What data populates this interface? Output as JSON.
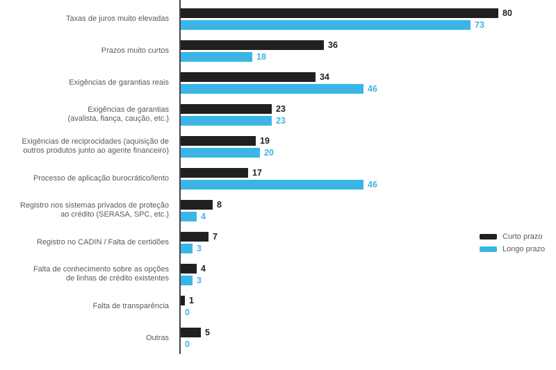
{
  "colors": {
    "curto_prazo": "#231f20",
    "longo_prazo": "#3ab5e6",
    "category_text": "#58595b",
    "axis_line": "#414042",
    "background": "#ffffff"
  },
  "legend": {
    "items": [
      {
        "label": "Curto prazo",
        "color": "#231f20"
      },
      {
        "label": "Longo prazo",
        "color": "#3ab5e6"
      }
    ],
    "position": "right"
  },
  "chart_data": {
    "type": "bar",
    "orientation": "horizontal",
    "title": "",
    "xlabel": "",
    "ylabel": "",
    "xlim": [
      0,
      88
    ],
    "grid": false,
    "value_labels_shown": true,
    "legend_position": "right",
    "categories": [
      "Taxas de juros muito elevadas",
      "Prazos muito curtos",
      "Exigências de garantias reais",
      "Exigências de garantias (avalista, fiança, caução, etc.)",
      "Exigências de reciprocidades (aquisição de outros produtos junto ao agente financeiro)",
      "Processo de aplicação burocrático/lento",
      "Registro nos sistemas privados de proteção ao crédito (SERASA, SPC, etc.)",
      "Registro no CADIN / Falta de certidões",
      "Falta de conhecimento sobre as opções de linhas de crédito existentes",
      "Falta de transparência",
      "Outras"
    ],
    "category_lines": [
      [
        "Taxas de juros muito elevadas"
      ],
      [
        "Prazos muito curtos"
      ],
      [
        "Exigências de garantias reais"
      ],
      [
        "Exigências de garantias",
        "(avalista, fiança, caução, etc.)"
      ],
      [
        "Exigências de reciprocidades (aquisição de",
        "outros produtos junto ao agente financeiro)"
      ],
      [
        "Processo de aplicação burocrático/lento"
      ],
      [
        "Registro nos sistemas privados de proteção",
        "ao crédito (SERASA, SPC, etc.)"
      ],
      [
        "Registro no CADIN / Falta de certidões"
      ],
      [
        "Falta de conhecimento sobre as opções",
        "de linhas de crédito existentes"
      ],
      [
        "Falta de transparência"
      ],
      [
        "Outras"
      ]
    ],
    "series": [
      {
        "name": "Curto prazo",
        "color": "#231f20",
        "values": [
          80,
          36,
          34,
          23,
          19,
          17,
          8,
          7,
          4,
          1,
          5
        ]
      },
      {
        "name": "Longo prazo",
        "color": "#3ab5e6",
        "values": [
          73,
          18,
          46,
          23,
          20,
          46,
          4,
          3,
          3,
          0,
          0
        ]
      }
    ]
  }
}
